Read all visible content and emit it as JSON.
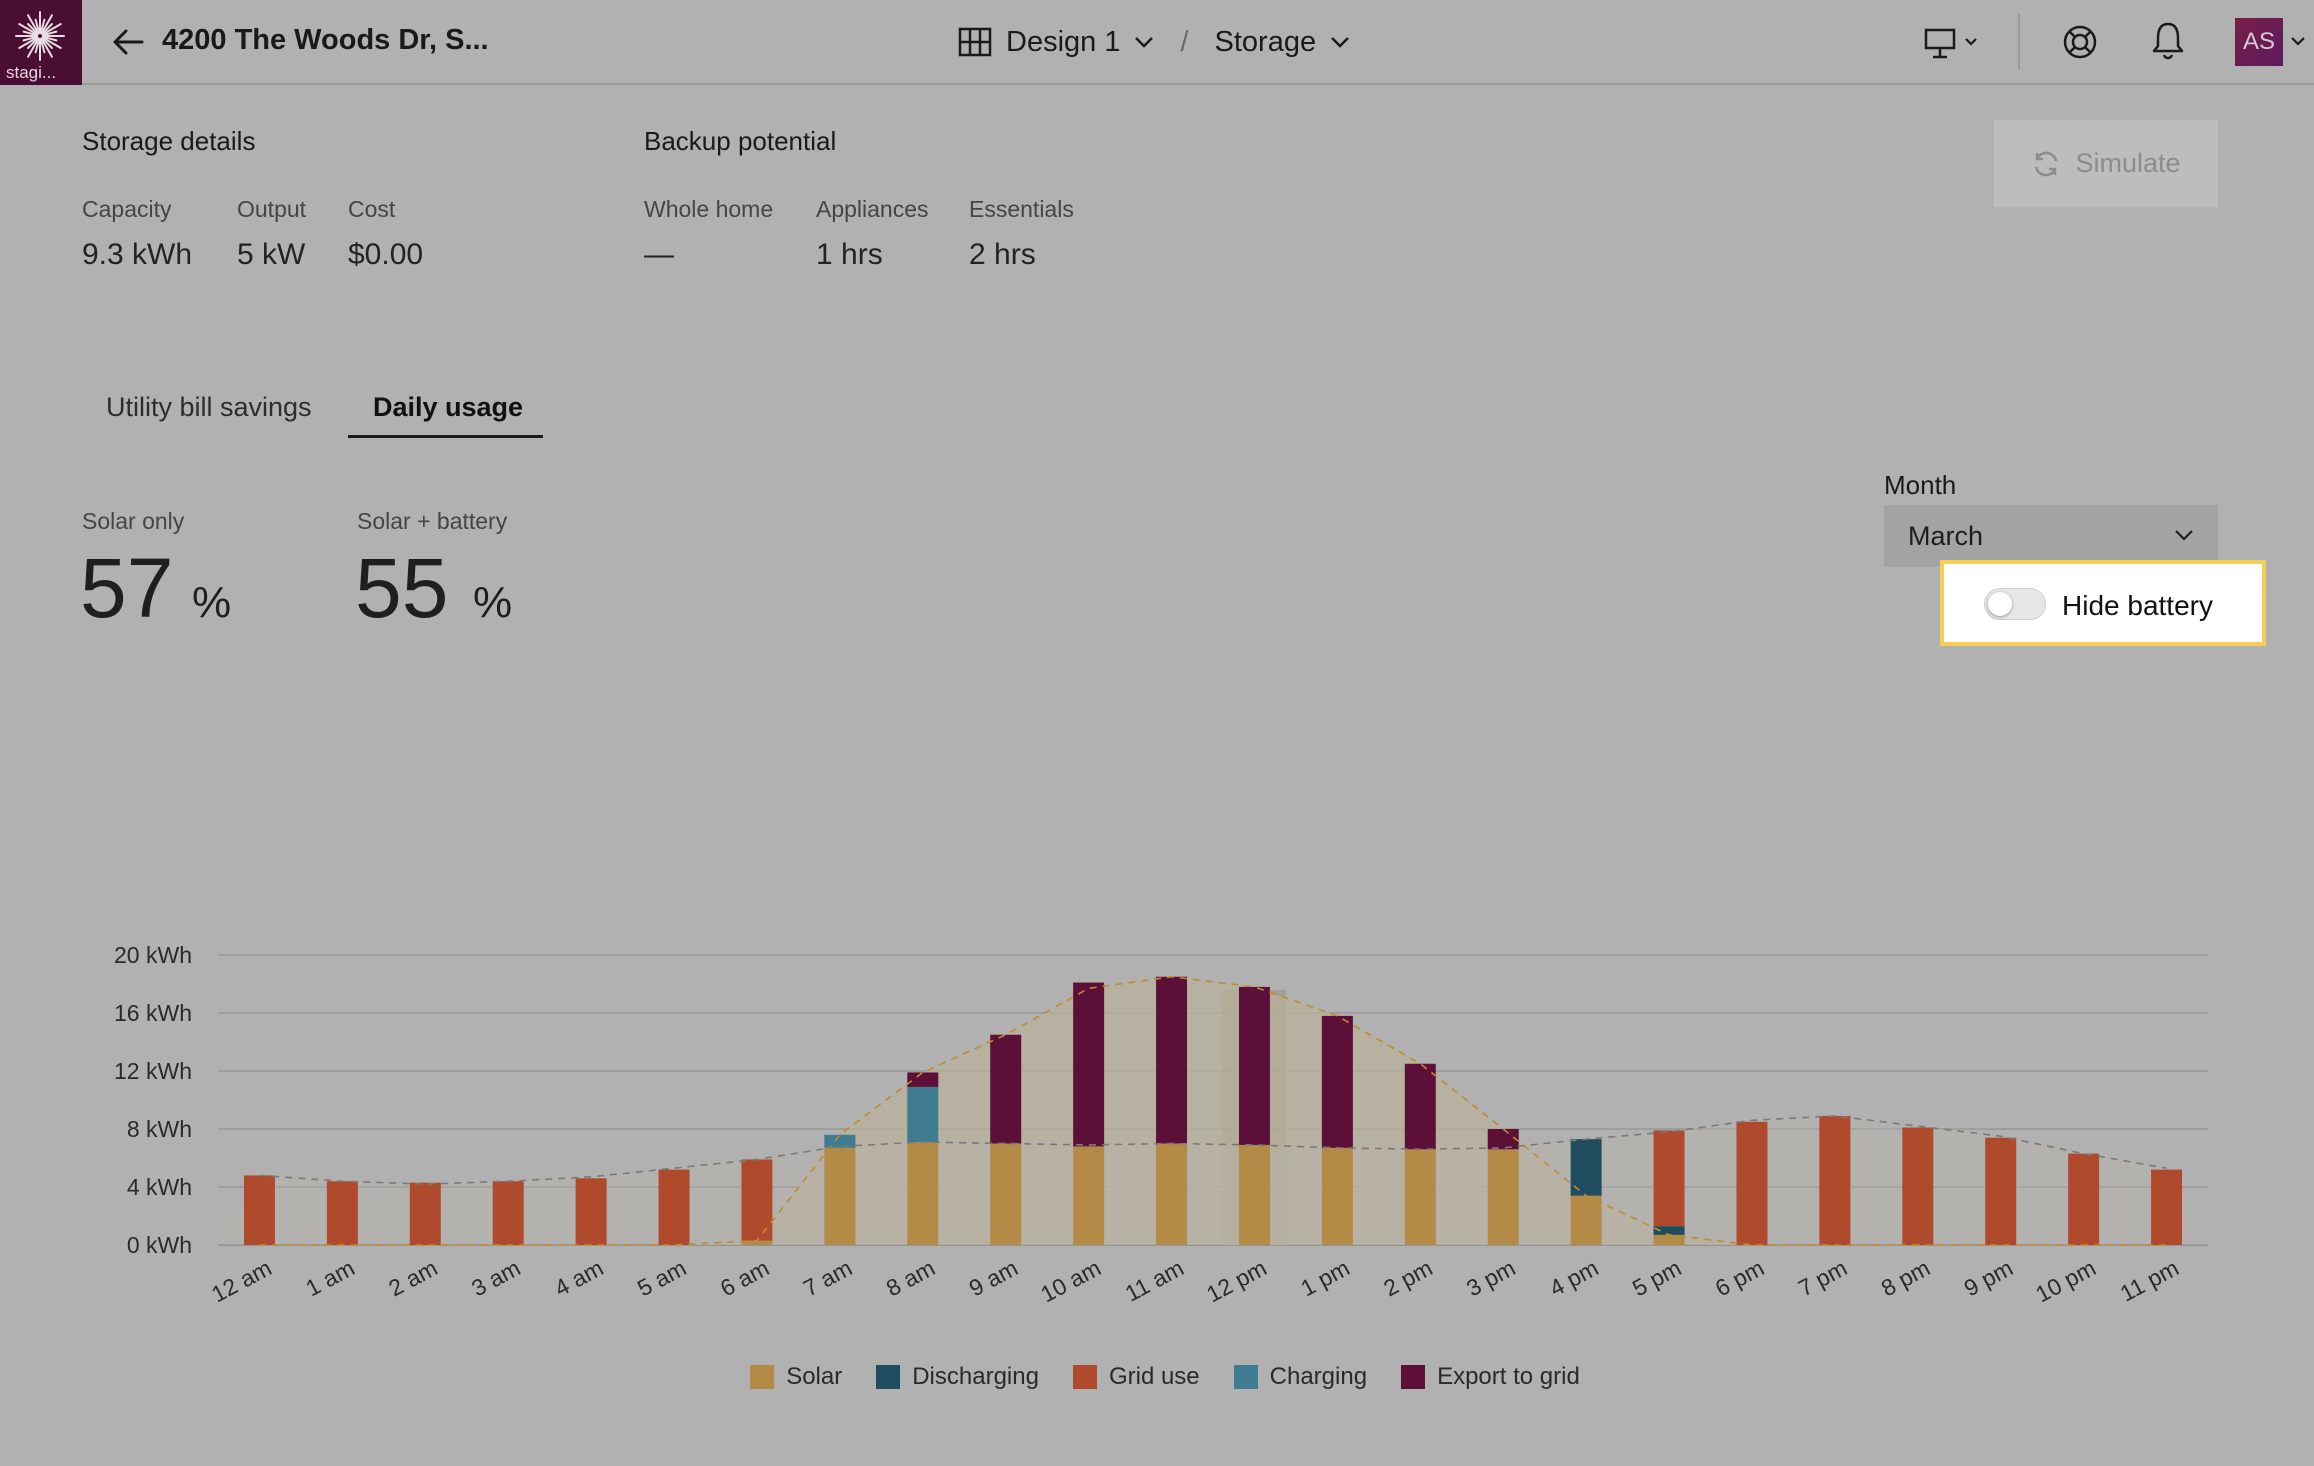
{
  "header": {
    "logo_text": "stagi...",
    "address": "4200 The Woods Dr, S...",
    "design": "Design 1",
    "separator": "/",
    "section": "Storage",
    "avatar_initials": "AS"
  },
  "storage_details": {
    "title": "Storage details",
    "capacity_label": "Capacity",
    "capacity_value": "9.3 kWh",
    "output_label": "Output",
    "output_value": "5 kW",
    "cost_label": "Cost",
    "cost_value": "$0.00"
  },
  "backup_potential": {
    "title": "Backup potential",
    "whole_home_label": "Whole home",
    "whole_home_value": "—",
    "appliances_label": "Appliances",
    "appliances_value": "1 hrs",
    "essentials_label": "Essentials",
    "essentials_value": "2 hrs"
  },
  "simulate_label": "Simulate",
  "tabs": [
    {
      "label": "Utility bill savings",
      "active": false
    },
    {
      "label": "Daily usage",
      "active": true
    }
  ],
  "offset": {
    "solar_only_label": "Solar only",
    "solar_only_value": "57",
    "solar_battery_label": "Solar + battery",
    "solar_battery_value": "55",
    "unit": "%"
  },
  "month": {
    "label": "Month",
    "value": "March"
  },
  "hide_battery": {
    "label": "Hide battery",
    "enabled": false
  },
  "colors": {
    "solar": "#b38b47",
    "discharging": "#1f4c5e",
    "grid": "#b04a2c",
    "charging": "#3f7c92",
    "export": "#5c1038",
    "highlight": "#f5cf55"
  },
  "chart_data": {
    "type": "bar",
    "stacked": true,
    "categories": [
      "12 am",
      "1 am",
      "2 am",
      "3 am",
      "4 am",
      "5 am",
      "6 am",
      "7 am",
      "8 am",
      "9 am",
      "10 am",
      "11 am",
      "12 pm",
      "1 pm",
      "2 pm",
      "3 pm",
      "4 pm",
      "5 pm",
      "6 pm",
      "7 pm",
      "8 pm",
      "9 pm",
      "10 pm",
      "11 pm"
    ],
    "y_ticks": [
      "0 kWh",
      "4 kWh",
      "8 kWh",
      "12 kWh",
      "16 kWh",
      "20 kWh"
    ],
    "ylim": [
      0,
      20
    ],
    "grid": true,
    "series": [
      {
        "name": "Solar",
        "color": "#b38b47",
        "values": [
          0,
          0,
          0,
          0,
          0,
          0,
          0.3,
          6.7,
          7.1,
          7.0,
          6.8,
          7.0,
          6.9,
          6.7,
          6.6,
          6.6,
          3.4,
          0.7,
          0,
          0,
          0,
          0,
          0,
          0
        ]
      },
      {
        "name": "Discharging",
        "color": "#1f4c5e",
        "values": [
          0,
          0,
          0,
          0,
          0,
          0,
          0,
          0,
          0,
          0,
          0,
          0,
          0,
          0,
          0,
          0,
          3.9,
          0.6,
          0,
          0,
          0,
          0,
          0,
          0
        ]
      },
      {
        "name": "Grid use",
        "color": "#b04a2c",
        "values": [
          4.8,
          4.4,
          4.3,
          4.4,
          4.6,
          5.2,
          5.6,
          0,
          0,
          0,
          0,
          0,
          0,
          0,
          0,
          0,
          0,
          6.6,
          8.5,
          8.9,
          8.1,
          7.4,
          6.3,
          5.2
        ]
      },
      {
        "name": "Charging",
        "color": "#3f7c92",
        "values": [
          0,
          0,
          0,
          0,
          0,
          0,
          0,
          0.9,
          3.8,
          0,
          0,
          0,
          0,
          0,
          0,
          0,
          0,
          0,
          0,
          0,
          0,
          0,
          0,
          0
        ]
      },
      {
        "name": "Export to grid",
        "color": "#5c1038",
        "values": [
          0,
          0,
          0,
          0,
          0,
          0,
          0,
          0,
          1.0,
          7.5,
          11.3,
          11.5,
          10.9,
          9.1,
          5.9,
          1.4,
          0,
          0,
          0,
          0,
          0,
          0,
          0,
          0
        ]
      }
    ],
    "overlay_lines": [
      {
        "style": "dashed",
        "color": "#c48a2c",
        "values": [
          0,
          0,
          0,
          0,
          0,
          0,
          0.3,
          7.6,
          11.9,
          14.5,
          17.7,
          18.5,
          17.8,
          15.8,
          12.5,
          8.0,
          3.4,
          0.7,
          0,
          0,
          0,
          0,
          0,
          0
        ]
      },
      {
        "style": "dashed",
        "color": "#7a7a7a",
        "values": [
          4.8,
          4.4,
          4.2,
          4.4,
          4.7,
          5.3,
          5.9,
          6.8,
          7.1,
          7.0,
          6.9,
          7.0,
          6.9,
          6.7,
          6.6,
          6.7,
          7.3,
          7.8,
          8.6,
          8.9,
          8.2,
          7.5,
          6.3,
          5.3
        ]
      }
    ],
    "highlighted_category": "12 pm",
    "legend_position": "bottom"
  }
}
